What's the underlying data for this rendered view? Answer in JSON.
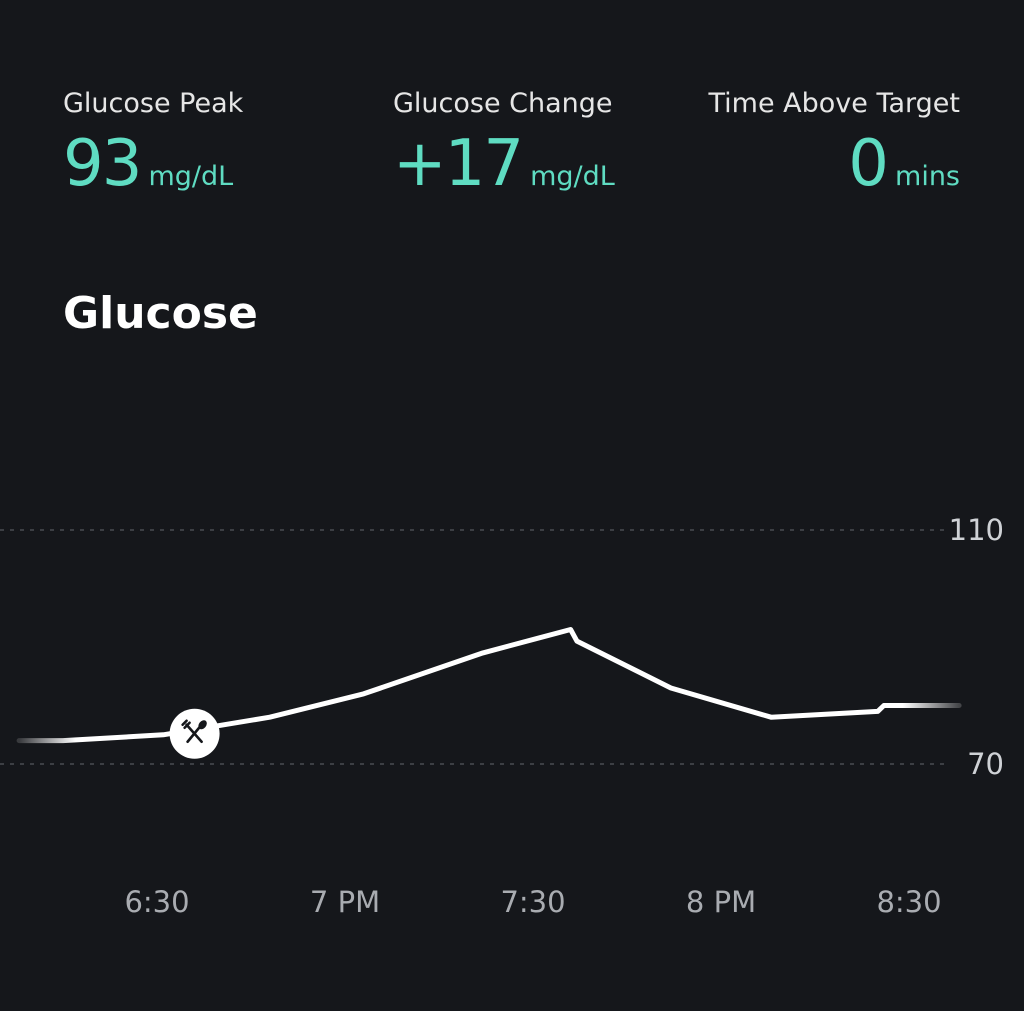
{
  "stats": {
    "peak": {
      "label": "Glucose Peak",
      "value": "93",
      "unit": "mg/dL"
    },
    "change": {
      "label": "Glucose Change",
      "value": "+17",
      "unit": "mg/dL"
    },
    "time_above": {
      "label": "Time Above Target",
      "value": "0",
      "unit": "mins"
    }
  },
  "section_title": "Glucose",
  "colors": {
    "background": "#15171b",
    "accent": "#5fdcc2",
    "line": "#ffffff",
    "gridline": "#4a4d52"
  },
  "chart_data": {
    "type": "line",
    "title": "Glucose",
    "xlabel": "",
    "ylabel": "",
    "x_ticks": [
      "6:30",
      "7 PM",
      "7:30",
      "8 PM",
      "8:30"
    ],
    "y_ticks": [
      70,
      110
    ],
    "gridlines": [
      70,
      110
    ],
    "ylim": [
      55,
      135
    ],
    "series": [
      {
        "x": [
          "6:08 PM",
          "6:15 PM",
          "6:31 PM",
          "6:48 PM",
          "7:03 PM",
          "7:22 PM",
          "7:36 PM",
          "7:37 PM",
          "7:52 PM",
          "8:08 PM",
          "8:25 PM",
          "8:26 PM",
          "8:38 PM"
        ],
        "y": [
          74,
          74,
          75,
          78,
          82,
          89,
          93,
          91,
          83,
          78,
          79,
          80,
          80
        ]
      }
    ],
    "annotations": [
      {
        "type": "meal-marker",
        "x": "6:36 PM",
        "y": 75,
        "icon": "fork-knife-icon"
      }
    ]
  }
}
